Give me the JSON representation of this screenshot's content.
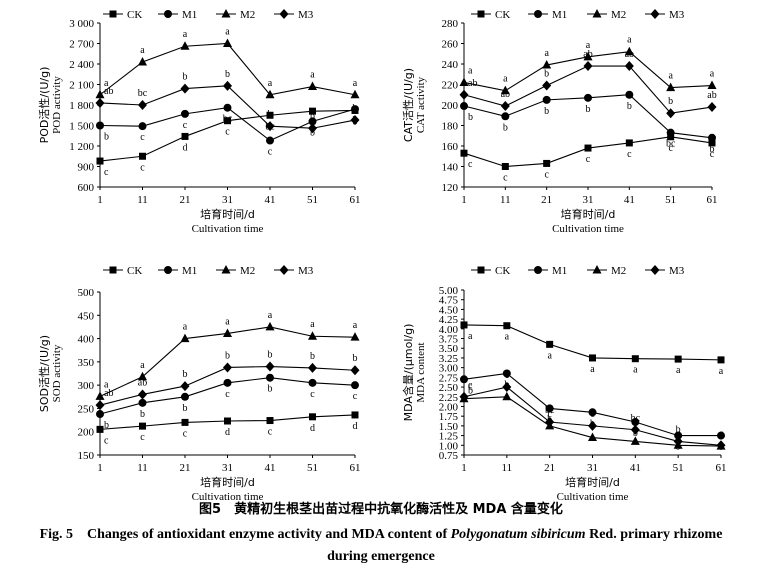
{
  "figure": {
    "caption_cn": "图5　黄精初生根茎出苗过程中抗氧化酶活性及 MDA 含量变化",
    "caption_en_prefix": "Fig. 5　Changes of antioxidant enzyme activity and MDA content of",
    "caption_en_species": "Polygonatum sibiricum",
    "caption_en_suffix": "Red. primary rhizome",
    "caption_en_line2": "during emergence"
  },
  "chart_data": [
    {
      "type": "line",
      "ylabel_cn": "POD活性/(U/g)",
      "ylabel_en": "POD activity",
      "xlabel_cn": "培育时间/d",
      "xlabel_en": "Cultivation time",
      "x": [
        1,
        11,
        21,
        31,
        41,
        51,
        61
      ],
      "ylim": [
        600,
        3000
      ],
      "yticks": [
        "600",
        "900",
        "1 200",
        "1 500",
        "1 800",
        "2 100",
        "2 400",
        "2 700",
        "3 000"
      ],
      "legend": [
        "CK",
        "M1",
        "M2",
        "M3"
      ],
      "series": [
        {
          "name": "CK",
          "marker": "square",
          "values": [
            980,
            1050,
            1340,
            1570,
            1650,
            1710,
            1720
          ],
          "letters": [
            "c",
            "c",
            "d",
            "c",
            "bc",
            "c",
            "b"
          ]
        },
        {
          "name": "M1",
          "marker": "circle",
          "values": [
            1500,
            1490,
            1670,
            1760,
            1280,
            1560,
            1740
          ],
          "letters": [
            "b",
            "c",
            "c",
            "bc",
            "c",
            "b",
            "b"
          ]
        },
        {
          "name": "M2",
          "marker": "triangle",
          "values": [
            1950,
            2430,
            2660,
            2700,
            1950,
            2070,
            1950
          ],
          "letters": [
            "a",
            "a",
            "a",
            "a",
            "a",
            "a",
            "a"
          ]
        },
        {
          "name": "M3",
          "marker": "diamond",
          "values": [
            1830,
            1800,
            2040,
            2080,
            1490,
            1460,
            1580
          ],
          "letters": [
            "ab",
            "bc",
            "b",
            "b",
            "b",
            "b",
            "b"
          ]
        }
      ]
    },
    {
      "type": "line",
      "ylabel_cn": "CAT活性/(U/g)",
      "ylabel_en": "CAT activity",
      "xlabel_cn": "培育时间/d",
      "xlabel_en": "Cultivation time",
      "x": [
        1,
        11,
        21,
        31,
        41,
        51,
        61
      ],
      "ylim": [
        120,
        280
      ],
      "yticks": [
        "120",
        "140",
        "160",
        "180",
        "200",
        "220",
        "240",
        "260",
        "280"
      ],
      "legend": [
        "CK",
        "M1",
        "M2",
        "M3"
      ],
      "series": [
        {
          "name": "CK",
          "marker": "square",
          "values": [
            153,
            140,
            143,
            158,
            163,
            169,
            163
          ],
          "letters": [
            "c",
            "c",
            "c",
            "c",
            "c",
            "c",
            "c"
          ]
        },
        {
          "name": "M1",
          "marker": "circle",
          "values": [
            199,
            189,
            205,
            207,
            210,
            173,
            168
          ],
          "letters": [
            "b",
            "b",
            "b",
            "b",
            "b",
            "bc",
            "b"
          ]
        },
        {
          "name": "M2",
          "marker": "triangle",
          "values": [
            222,
            214,
            239,
            247,
            252,
            217,
            219
          ],
          "letters": [
            "a",
            "a",
            "a",
            "a",
            "a",
            "a",
            "a"
          ]
        },
        {
          "name": "M3",
          "marker": "diamond",
          "values": [
            210,
            199,
            219,
            238,
            238,
            192,
            198
          ],
          "letters": [
            "ab",
            "ab",
            "b",
            "ab",
            "ab",
            "b",
            "ab"
          ]
        }
      ]
    },
    {
      "type": "line",
      "ylabel_cn": "SOD活性/(U/g)",
      "ylabel_en": "SOD activity",
      "xlabel_cn": "培育时间/d",
      "xlabel_en": "Cultivation time",
      "x": [
        1,
        11,
        21,
        31,
        41,
        51,
        61
      ],
      "ylim": [
        150,
        500
      ],
      "yticks": [
        "150",
        "200",
        "250",
        "300",
        "350",
        "400",
        "450",
        "500"
      ],
      "legend": [
        "CK",
        "M1",
        "M2",
        "M3"
      ],
      "series": [
        {
          "name": "CK",
          "marker": "square",
          "values": [
            205,
            212,
            220,
            223,
            224,
            232,
            236
          ],
          "letters": [
            "c",
            "c",
            "c",
            "d",
            "c",
            "d",
            "d"
          ]
        },
        {
          "name": "M1",
          "marker": "circle",
          "values": [
            238,
            262,
            275,
            305,
            316,
            305,
            300
          ],
          "letters": [
            "b",
            "b",
            "b",
            "c",
            "b",
            "c",
            "c"
          ]
        },
        {
          "name": "M2",
          "marker": "triangle",
          "values": [
            276,
            318,
            400,
            411,
            425,
            405,
            403
          ],
          "letters": [
            "a",
            "a",
            "a",
            "a",
            "a",
            "a",
            "a"
          ]
        },
        {
          "name": "M3",
          "marker": "diamond",
          "values": [
            257,
            280,
            298,
            338,
            340,
            337,
            332
          ],
          "letters": [
            "ab",
            "ab",
            "b",
            "b",
            "b",
            "b",
            "b"
          ]
        }
      ]
    },
    {
      "type": "line",
      "ylabel_cn": "MDA含量/(μmol/g)",
      "ylabel_en": "MDA content",
      "xlabel_cn": "培育时间/d",
      "xlabel_en": "Cultivation time",
      "x": [
        1,
        11,
        21,
        31,
        41,
        51,
        61
      ],
      "ylim": [
        0.75,
        5.0
      ],
      "yticks": [
        "0.75",
        "1.00",
        "1.25",
        "1.50",
        "1.75",
        "2.00",
        "2.25",
        "2.50",
        "2.75",
        "3.00",
        "3.25",
        "3.50",
        "3.75",
        "4.00",
        "4.25",
        "4.50",
        "4.75",
        "5.00"
      ],
      "legend": [
        "CK",
        "M1",
        "M2",
        "M3"
      ],
      "series": [
        {
          "name": "CK",
          "marker": "square",
          "values": [
            4.1,
            4.08,
            3.6,
            3.25,
            3.23,
            3.22,
            3.2
          ],
          "letters": [
            "a",
            "a",
            "a",
            "a",
            "a",
            "a",
            "a"
          ]
        },
        {
          "name": "M1",
          "marker": "circle",
          "values": [
            2.7,
            2.85,
            1.95,
            1.85,
            1.6,
            1.25,
            1.25
          ],
          "letters": [
            "b",
            "b",
            "b",
            "b",
            "b",
            "b",
            "b"
          ]
        },
        {
          "name": "M2",
          "marker": "triangle",
          "values": [
            2.2,
            2.25,
            1.5,
            1.2,
            1.1,
            1.0,
            0.98
          ],
          "letters": [
            "c",
            "c",
            "c",
            "c",
            "c",
            "c",
            "c"
          ]
        },
        {
          "name": "M3",
          "marker": "diamond",
          "values": [
            2.25,
            2.5,
            1.6,
            1.5,
            1.4,
            1.1,
            1.0
          ],
          "letters": [
            "c",
            "c",
            "bc",
            "c",
            "bc",
            "b",
            "c"
          ]
        }
      ]
    }
  ]
}
